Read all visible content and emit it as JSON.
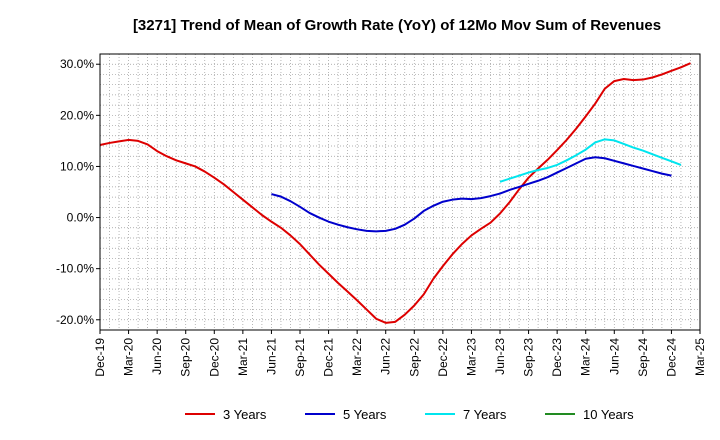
{
  "chart_data": {
    "type": "line",
    "title": "[3271]  Trend of Mean of Growth Rate (YoY) of 12Mo Mov Sum of Revenues",
    "xlabel": "",
    "ylabel": "",
    "ylim": [
      -22,
      32
    ],
    "y_ticks": [
      -20,
      -10,
      0,
      10,
      20,
      30
    ],
    "y_tick_labels": [
      "-20.0%",
      "-10.0%",
      "0.0%",
      "10.0%",
      "20.0%",
      "30.0%"
    ],
    "x_tick_labels": [
      "Dec-19",
      "Mar-20",
      "Jun-20",
      "Sep-20",
      "Dec-20",
      "Mar-21",
      "Jun-21",
      "Sep-21",
      "Dec-21",
      "Mar-22",
      "Jun-22",
      "Sep-22",
      "Dec-22",
      "Mar-23",
      "Jun-23",
      "Sep-23",
      "Dec-23",
      "Mar-24",
      "Jun-24",
      "Sep-24",
      "Dec-24",
      "Mar-25"
    ],
    "x_start": "Dec-19",
    "x_unit": "month",
    "grid": "dotted",
    "series": [
      {
        "name": "3 Years",
        "color": "#dd0000",
        "start_month": 0,
        "values": [
          14.2,
          14.6,
          14.9,
          15.2,
          15.0,
          14.3,
          13.0,
          12.0,
          11.2,
          10.6,
          10.0,
          9.0,
          7.8,
          6.5,
          5.0,
          3.5,
          2.0,
          0.5,
          -0.8,
          -2.0,
          -3.5,
          -5.2,
          -7.2,
          -9.2,
          -11.0,
          -12.8,
          -14.5,
          -16.2,
          -18.0,
          -19.8,
          -20.6,
          -20.4,
          -19.0,
          -17.2,
          -15.0,
          -12.0,
          -9.5,
          -7.2,
          -5.2,
          -3.5,
          -2.2,
          -1.0,
          0.8,
          3.0,
          5.5,
          7.8,
          9.6,
          11.3,
          13.2,
          15.2,
          17.4,
          19.8,
          22.3,
          25.2,
          26.7,
          27.1,
          26.9,
          27.0,
          27.4,
          28.0,
          28.7,
          29.4,
          30.2
        ]
      },
      {
        "name": "5 Years",
        "color": "#0000cc",
        "start_month": 18,
        "values": [
          4.6,
          4.1,
          3.2,
          2.1,
          0.9,
          0.0,
          -0.8,
          -1.4,
          -1.9,
          -2.3,
          -2.6,
          -2.7,
          -2.6,
          -2.2,
          -1.4,
          -0.2,
          1.3,
          2.3,
          3.1,
          3.5,
          3.7,
          3.6,
          3.8,
          4.2,
          4.7,
          5.4,
          6.0,
          6.6,
          7.2,
          7.9,
          8.8,
          9.7,
          10.6,
          11.5,
          11.8,
          11.6,
          11.1,
          10.6,
          10.1,
          9.6,
          9.1,
          8.6,
          8.2
        ]
      },
      {
        "name": "7 Years",
        "color": "#00e5ee",
        "start_month": 42,
        "values": [
          7.0,
          7.6,
          8.2,
          8.8,
          9.3,
          9.7,
          10.3,
          11.2,
          12.2,
          13.3,
          14.7,
          15.3,
          15.1,
          14.4,
          13.7,
          13.1,
          12.4,
          11.7,
          11.0,
          10.3
        ]
      },
      {
        "name": "10 Years",
        "color": "#228b22",
        "start_month": 0,
        "values": []
      }
    ]
  }
}
